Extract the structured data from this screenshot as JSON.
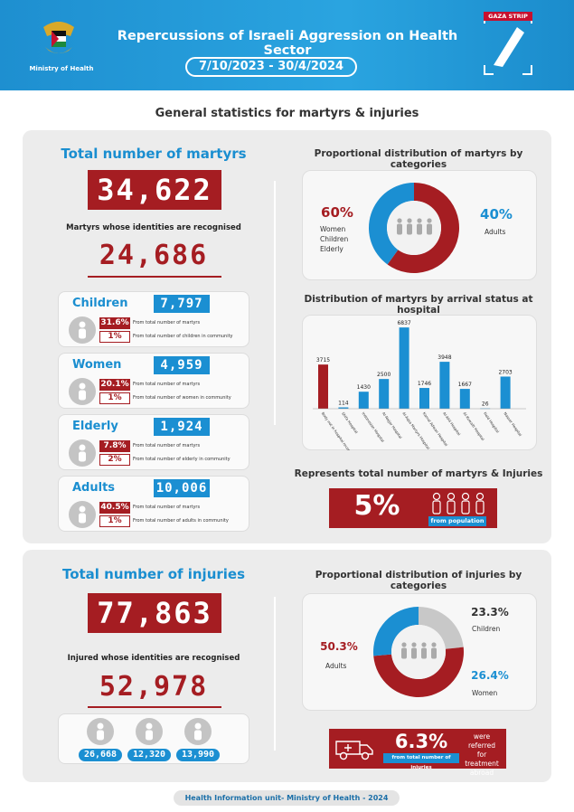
{
  "header": {
    "title": "Repercussions of Israeli Aggression on Health Sector",
    "date_range": "7/10/2023 - 30/4/2024",
    "ministry_label": "Ministry of Health",
    "gaza_label": "GAZA STRIP"
  },
  "subtitle": "General statistics for martyrs & injuries",
  "martyrs": {
    "total_title": "Total number of martyrs",
    "total": "34,622",
    "recognised_label": "Martyrs whose identities are recognised",
    "recognised": "24,686",
    "categories": [
      {
        "name": "Children",
        "value": "7,797",
        "pct_total": "31.6%",
        "pct_total_label": "From total number of martyrs",
        "pct_community": "1%",
        "pct_community_label": "From total number of children in community"
      },
      {
        "name": "Women",
        "value": "4,959",
        "pct_total": "20.1%",
        "pct_total_label": "From total number of martyrs",
        "pct_community": "1%",
        "pct_community_label": "From total number of women in community"
      },
      {
        "name": "Elderly",
        "value": "1,924",
        "pct_total": "7.8%",
        "pct_total_label": "From total number of martyrs",
        "pct_community": "2%",
        "pct_community_label": "From total number of elderly in community"
      },
      {
        "name": "Adults",
        "value": "10,006",
        "pct_total": "40.5%",
        "pct_total_label": "From total number of martyrs",
        "pct_community": "1%",
        "pct_community_label": "From total number of adults in community"
      }
    ],
    "prop_title": "Proportional distribution of martyrs by categories",
    "prop_left_pct": "60%",
    "prop_left_l1": "Women",
    "prop_left_l2": "Children",
    "prop_left_l3": "Elderly",
    "prop_right_pct": "40%",
    "prop_right_label": "Adults",
    "hospital_title": "Distribution of martyrs by arrival status at hospital",
    "total_pct_title": "Represents total number of martyrs & Injuries",
    "total_pct": "5%",
    "total_pct_label": "from population"
  },
  "injuries": {
    "total_title": "Total number of injuries",
    "total": "77,863",
    "recognised_label": "Injured whose identities are recognised",
    "recognised": "52,978",
    "groups": [
      "26,668",
      "12,320",
      "13,990"
    ],
    "prop_title": "Proportional distribution of injuries by categories",
    "children_pct": "23.3%",
    "children_label": "Children",
    "adults_pct": "50.3%",
    "adults_label": "Adults",
    "women_pct": "26.4%",
    "women_label": "Women",
    "abroad_pct": "6.3%",
    "abroad_sub": "from total number of injuries",
    "abroad_l1": "were referred",
    "abroad_l2": "for treatment",
    "abroad_l3": "abroad"
  },
  "footer": "Health Information unit- Ministry of Health - 2024",
  "colors": {
    "red": "#a51d22",
    "blue": "#1b8fd2",
    "gray": "#c8c8c8"
  },
  "chart_data": [
    {
      "type": "pie",
      "title": "Proportional distribution of martyrs by categories",
      "categories": [
        "Women Children Elderly",
        "Adults"
      ],
      "values": [
        60,
        40
      ],
      "colors": [
        "#a51d22",
        "#1b8fd2"
      ]
    },
    {
      "type": "bar",
      "title": "Distribution of martyrs by arrival status at hospital",
      "categories": [
        "Body not in hospital records",
        "Shifa Hospital",
        "Indonesian Hospital",
        "Al-Najjar Hospital",
        "Al-Aqsa Martyrs Hospital",
        "Kamal Adwan Hospital",
        "Al-Ahli Hospital",
        "Al-Kuwaiti Hospital",
        "Field Hospital",
        "Nasser Hospital"
      ],
      "values": [
        3715,
        114,
        1430,
        2500,
        6837,
        1746,
        3948,
        1667,
        26,
        2703
      ],
      "colors": [
        "#a51d22",
        "#1b8fd2"
      ],
      "ylim": [
        0,
        7000
      ]
    },
    {
      "type": "pie",
      "title": "Proportional distribution of injuries by categories",
      "categories": [
        "Children",
        "Adults",
        "Women"
      ],
      "values": [
        23.3,
        50.3,
        26.4
      ],
      "colors": [
        "#c8c8c8",
        "#a51d22",
        "#1b8fd2"
      ]
    }
  ]
}
